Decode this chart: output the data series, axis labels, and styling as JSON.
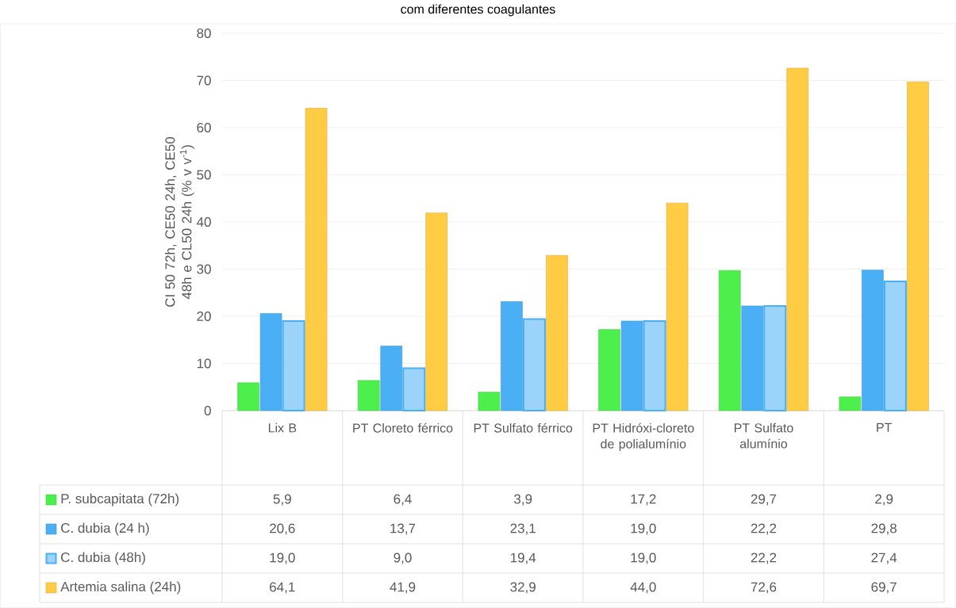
{
  "chart_data": {
    "type": "bar",
    "title": "com diferentes coagulantes",
    "ylabel": "CI 50 72h, CE50 24h, CE50 48h e CL50 24h (% v v$^{-1}$)",
    "categories": [
      "Lix B",
      "PT Cloreto férrico",
      "PT Sulfato férrico",
      "PT Hidróxi-cloreto de polialumínio",
      "PT Sulfato alumínio",
      "PT"
    ],
    "series": [
      {
        "name": "P. subcapitata (72h)",
        "color": "#4cef4c",
        "values": [
          5.9,
          6.4,
          3.9,
          17.2,
          29.7,
          2.9
        ],
        "value_labels": [
          "5,9",
          "6,4",
          "3,9",
          "17,2",
          "29,7",
          "2,9"
        ]
      },
      {
        "name": "C. dubia (24 h)",
        "color": "#4aaff5",
        "values": [
          20.6,
          13.7,
          23.1,
          19.0,
          22.2,
          29.8
        ],
        "value_labels": [
          "20,6",
          "13,7",
          "23,1",
          "19,0",
          "22,2",
          "29,8"
        ]
      },
      {
        "name": "C. dubia (48h)",
        "color": "#4aaff5",
        "values": [
          19.0,
          9.0,
          19.4,
          19.0,
          22.2,
          27.4
        ],
        "value_labels": [
          "19,0",
          "9,0",
          "19,4",
          "19,0",
          "22,2",
          "27,4"
        ]
      },
      {
        "name": "Artemia salina (24h)",
        "color": "#ffcc44",
        "values": [
          64.1,
          41.9,
          32.9,
          44.0,
          72.6,
          69.7
        ],
        "value_labels": [
          "64,1",
          "41,9",
          "32,9",
          "44,0",
          "72,6",
          "69,7"
        ]
      }
    ],
    "ylim": [
      0,
      80
    ],
    "yticks": [
      0,
      10,
      20,
      30,
      40,
      50,
      60,
      70,
      80
    ],
    "grid": "y",
    "legend": "bottom left"
  }
}
